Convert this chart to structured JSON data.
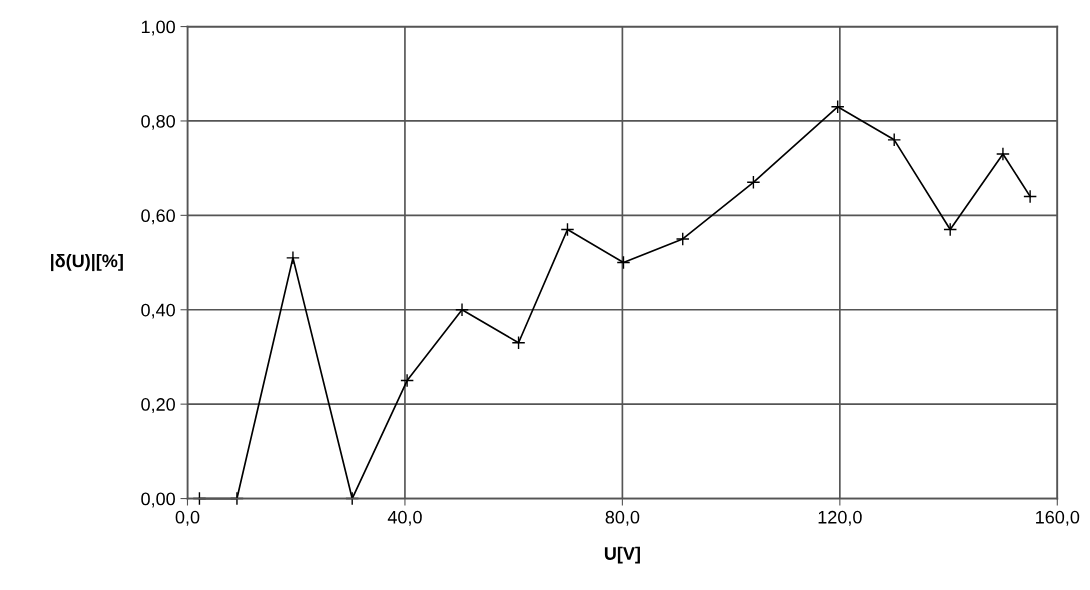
{
  "chart_data": {
    "type": "line",
    "xlabel": "U[V]",
    "ylabel": "|δ(U)|[%]",
    "x": [
      2.2,
      9.1,
      19.4,
      30.3,
      40.4,
      50.5,
      60.9,
      69.9,
      80.2,
      91.1,
      104.1,
      119.6,
      130.0,
      140.3,
      150.0,
      155.0
    ],
    "series": [
      {
        "color": "#000000",
        "values": [
          0.0,
          0.0,
          0.51,
          0.0,
          0.25,
          0.4,
          0.33,
          0.57,
          0.5,
          0.55,
          0.67,
          0.83,
          0.76,
          0.57,
          0.73,
          0.64
        ]
      }
    ],
    "xlim": [
      0,
      160
    ],
    "ylim": [
      0,
      1
    ],
    "xticks": [
      {
        "value": 0,
        "label": "0,0"
      },
      {
        "value": 40,
        "label": "40,0"
      },
      {
        "value": 80,
        "label": "80,0"
      },
      {
        "value": 120,
        "label": "120,0"
      },
      {
        "value": 160,
        "label": "160,0"
      }
    ],
    "yticks": [
      {
        "value": 0,
        "label": "0,00"
      },
      {
        "value": 0.2,
        "label": "0,20"
      },
      {
        "value": 0.4,
        "label": "0,40"
      },
      {
        "value": 0.6,
        "label": "0,60"
      },
      {
        "value": 0.8,
        "label": "0,80"
      },
      {
        "value": 1.0,
        "label": "1,00"
      }
    ],
    "grid": true,
    "marker": "cross",
    "line_style": "solid"
  }
}
